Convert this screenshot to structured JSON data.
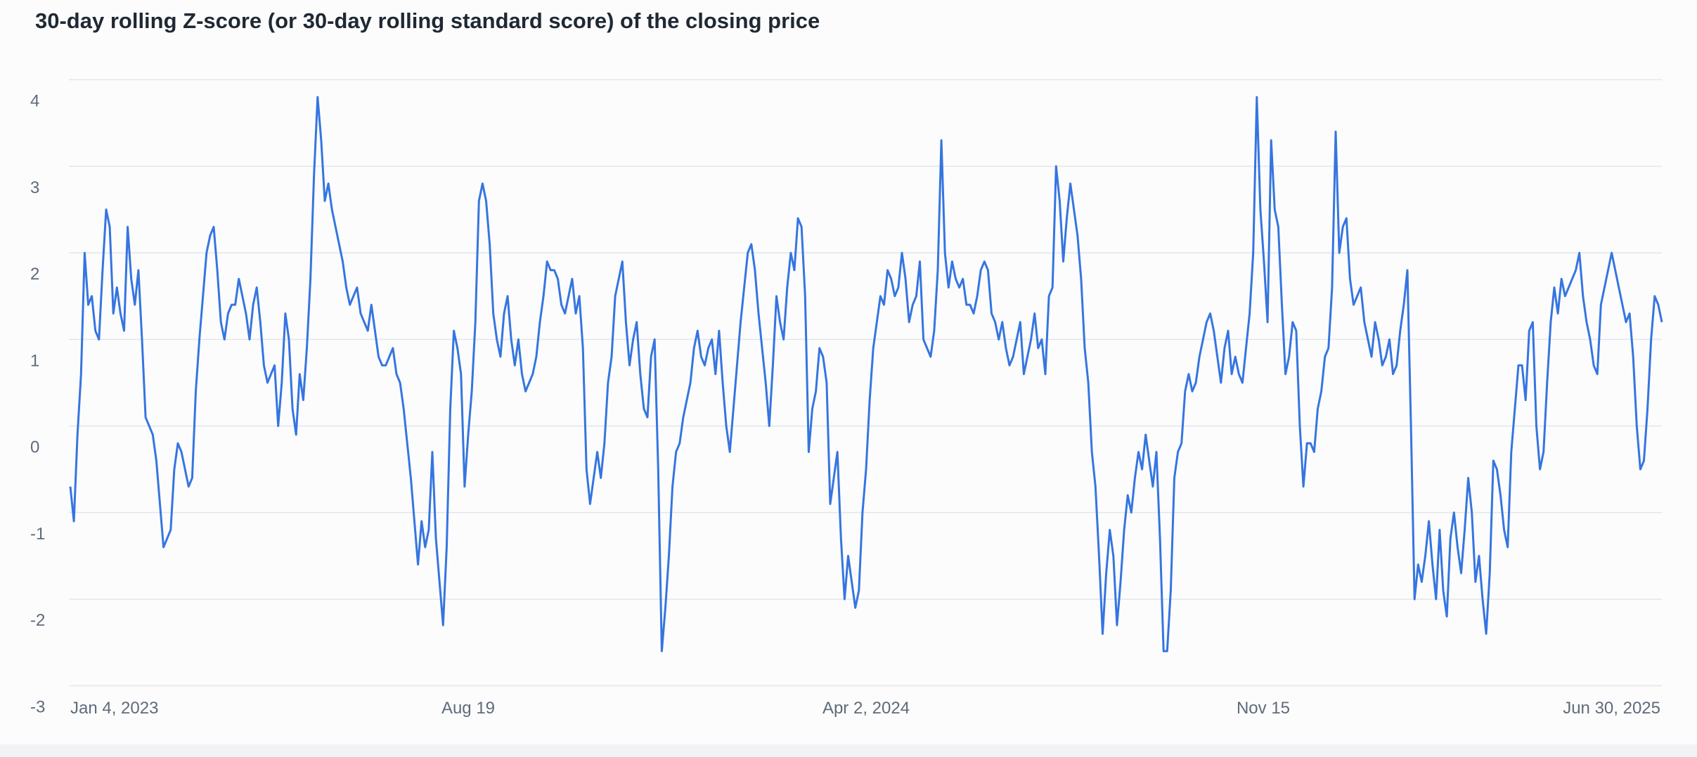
{
  "chart_data": {
    "type": "line",
    "title": "30-day rolling Z-score (or 30-day rolling standard score) of the closing price",
    "xlabel": "",
    "ylabel": "",
    "ylim": [
      -3,
      4
    ],
    "yticks": [
      "4",
      "3",
      "2",
      "1",
      "0",
      "-1",
      "-2",
      "-3"
    ],
    "xticks": [
      "Jan 4, 2023",
      "Aug 19",
      "Apr 2, 2024",
      "Nov 15",
      "Jun 30, 2025"
    ],
    "grid": true,
    "line_color": "#3575e0",
    "series": [
      {
        "x_start": "2023-01-04",
        "x_end": "2025-07-22",
        "values": [
          -0.7,
          -1.1,
          -0.1,
          0.6,
          2.0,
          1.4,
          1.5,
          1.1,
          1.0,
          1.8,
          2.5,
          2.3,
          1.3,
          1.6,
          1.3,
          1.1,
          2.3,
          1.7,
          1.4,
          1.8,
          1.0,
          0.1,
          0.0,
          -0.1,
          -0.4,
          -0.9,
          -1.4,
          -1.3,
          -1.2,
          -0.5,
          -0.2,
          -0.3,
          -0.5,
          -0.7,
          -0.6,
          0.4,
          1.0,
          1.5,
          2.0,
          2.2,
          2.3,
          1.8,
          1.2,
          1.0,
          1.3,
          1.4,
          1.4,
          1.7,
          1.5,
          1.3,
          1.0,
          1.4,
          1.6,
          1.2,
          0.7,
          0.5,
          0.6,
          0.7,
          0.0,
          0.5,
          1.3,
          1.0,
          0.2,
          -0.1,
          0.6,
          0.3,
          0.9,
          1.7,
          2.9,
          3.8,
          3.3,
          2.6,
          2.8,
          2.5,
          2.3,
          2.1,
          1.9,
          1.6,
          1.4,
          1.5,
          1.6,
          1.3,
          1.2,
          1.1,
          1.4,
          1.1,
          0.8,
          0.7,
          0.7,
          0.8,
          0.9,
          0.6,
          0.5,
          0.2,
          -0.2,
          -0.6,
          -1.1,
          -1.6,
          -1.1,
          -1.4,
          -1.2,
          -0.3,
          -1.3,
          -1.8,
          -2.3,
          -1.4,
          0.2,
          1.1,
          0.9,
          0.6,
          -0.7,
          -0.1,
          0.4,
          1.2,
          2.6,
          2.8,
          2.6,
          2.1,
          1.3,
          1.0,
          0.8,
          1.3,
          1.5,
          1.0,
          0.7,
          1.0,
          0.6,
          0.4,
          0.5,
          0.6,
          0.8,
          1.2,
          1.5,
          1.9,
          1.8,
          1.8,
          1.7,
          1.4,
          1.3,
          1.5,
          1.7,
          1.3,
          1.5,
          0.9,
          -0.5,
          -0.9,
          -0.6,
          -0.3,
          -0.6,
          -0.2,
          0.5,
          0.8,
          1.5,
          1.7,
          1.9,
          1.2,
          0.7,
          1.0,
          1.2,
          0.6,
          0.2,
          0.1,
          0.8,
          1.0,
          -0.5,
          -2.6,
          -2.1,
          -1.5,
          -0.7,
          -0.3,
          -0.2,
          0.1,
          0.3,
          0.5,
          0.9,
          1.1,
          0.8,
          0.7,
          0.9,
          1.0,
          0.6,
          1.1,
          0.5,
          0.0,
          -0.3,
          0.2,
          0.7,
          1.2,
          1.6,
          2.0,
          2.1,
          1.8,
          1.3,
          0.9,
          0.5,
          0.0,
          0.7,
          1.5,
          1.2,
          1.0,
          1.6,
          2.0,
          1.8,
          2.4,
          2.3,
          1.5,
          -0.3,
          0.2,
          0.4,
          0.9,
          0.8,
          0.5,
          -0.9,
          -0.6,
          -0.3,
          -1.3,
          -2.0,
          -1.5,
          -1.8,
          -2.1,
          -1.9,
          -1.0,
          -0.5,
          0.3,
          0.9,
          1.2,
          1.5,
          1.4,
          1.8,
          1.7,
          1.5,
          1.6,
          2.0,
          1.7,
          1.2,
          1.4,
          1.5,
          1.9,
          1.0,
          0.9,
          0.8,
          1.1,
          1.8,
          3.3,
          2.0,
          1.6,
          1.9,
          1.7,
          1.6,
          1.7,
          1.4,
          1.4,
          1.3,
          1.5,
          1.8,
          1.9,
          1.8,
          1.3,
          1.2,
          1.0,
          1.2,
          0.9,
          0.7,
          0.8,
          1.0,
          1.2,
          0.6,
          0.8,
          1.0,
          1.3,
          0.9,
          1.0,
          0.6,
          1.5,
          1.6,
          3.0,
          2.6,
          1.9,
          2.4,
          2.8,
          2.5,
          2.2,
          1.7,
          0.9,
          0.5,
          -0.3,
          -0.7,
          -1.5,
          -2.4,
          -1.7,
          -1.2,
          -1.5,
          -2.3,
          -1.8,
          -1.2,
          -0.8,
          -1.0,
          -0.6,
          -0.3,
          -0.5,
          -0.1,
          -0.4,
          -0.7,
          -0.3,
          -1.3,
          -2.6,
          -2.6,
          -1.9,
          -0.6,
          -0.3,
          -0.2,
          0.4,
          0.6,
          0.4,
          0.5,
          0.8,
          1.0,
          1.2,
          1.3,
          1.1,
          0.8,
          0.5,
          0.9,
          1.1,
          0.6,
          0.8,
          0.6,
          0.5,
          0.9,
          1.3,
          2.0,
          3.8,
          2.5,
          1.9,
          1.2,
          3.3,
          2.5,
          2.3,
          1.4,
          0.6,
          0.8,
          1.2,
          1.1,
          0.0,
          -0.7,
          -0.2,
          -0.2,
          -0.3,
          0.2,
          0.4,
          0.8,
          0.9,
          1.6,
          3.4,
          2.0,
          2.3,
          2.4,
          1.7,
          1.4,
          1.5,
          1.6,
          1.2,
          1.0,
          0.8,
          1.2,
          1.0,
          0.7,
          0.8,
          1.0,
          0.6,
          0.7,
          1.1,
          1.4,
          1.8,
          0.0,
          -2.0,
          -1.6,
          -1.8,
          -1.5,
          -1.1,
          -1.6,
          -2.0,
          -1.2,
          -1.9,
          -2.2,
          -1.3,
          -1.0,
          -1.4,
          -1.7,
          -1.2,
          -0.6,
          -1.0,
          -1.8,
          -1.5,
          -2.0,
          -2.4,
          -1.7,
          -0.4,
          -0.5,
          -0.8,
          -1.2,
          -1.4,
          -0.3,
          0.2,
          0.7,
          0.7,
          0.3,
          1.1,
          1.2,
          0.0,
          -0.5,
          -0.3,
          0.5,
          1.2,
          1.6,
          1.3,
          1.7,
          1.5,
          1.6,
          1.7,
          1.8,
          2.0,
          1.5,
          1.2,
          1.0,
          0.7,
          0.6,
          1.4,
          1.6,
          1.8,
          2.0,
          1.8,
          1.6,
          1.4,
          1.2,
          1.3,
          0.8,
          0.0,
          -0.5,
          -0.4,
          0.2,
          1.0,
          1.5,
          1.4,
          1.2
        ]
      }
    ]
  }
}
